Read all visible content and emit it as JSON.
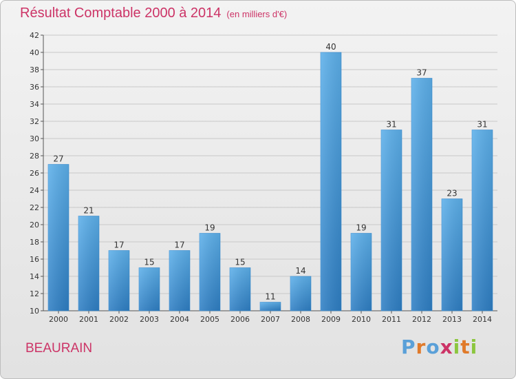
{
  "chart_data": {
    "type": "bar",
    "title": "Résultat Comptable 2000 à 2014",
    "subtitle": "(en milliers d'€)",
    "categories": [
      "2000",
      "2001",
      "2002",
      "2003",
      "2004",
      "2005",
      "2006",
      "2007",
      "2008",
      "2009",
      "2010",
      "2011",
      "2012",
      "2013",
      "2014"
    ],
    "values": [
      27,
      21,
      17,
      15,
      17,
      19,
      15,
      11,
      14,
      40,
      19,
      31,
      37,
      23,
      31
    ],
    "ylim": [
      10,
      42
    ],
    "yticks": [
      10,
      12,
      14,
      16,
      18,
      20,
      22,
      24,
      26,
      28,
      30,
      32,
      34,
      36,
      38,
      40,
      42
    ],
    "xlabel": "",
    "ylabel": "",
    "grid": true,
    "bar_color": "#4a9fe0",
    "grid_color": "#c8c8c8"
  },
  "place": "BEAURAIN",
  "brand": {
    "letters": [
      "P",
      "r",
      "o",
      "x",
      "i",
      "t",
      "i"
    ],
    "colors": [
      "#5aa0d8",
      "#e07a2a",
      "#5aa0d8",
      "#cc3366",
      "#8cc63f",
      "#e07a2a",
      "#8cc63f"
    ]
  }
}
